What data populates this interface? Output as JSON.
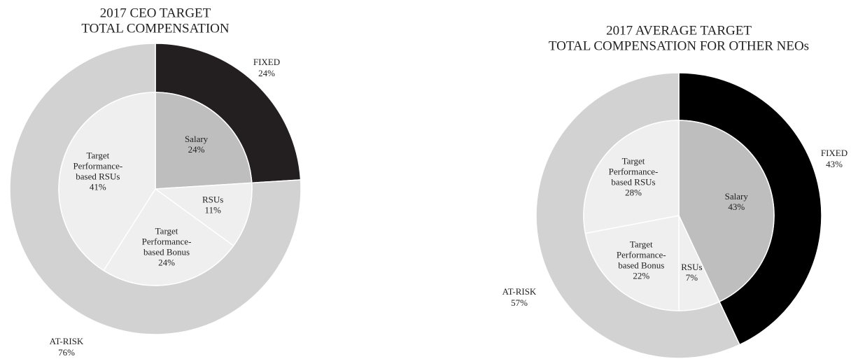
{
  "chart_data": [
    {
      "type": "pie",
      "title": [
        "2017 CEO TARGET",
        "TOTAL COMPENSATION"
      ],
      "outer": {
        "labels": [
          "FIXED",
          "AT-RISK"
        ],
        "values": [
          24,
          76
        ],
        "value_labels": [
          "24%",
          "76%"
        ],
        "colors": [
          "#231f20",
          "#d2d2d2"
        ]
      },
      "inner": {
        "labels": [
          [
            "Salary"
          ],
          [
            "RSUs"
          ],
          [
            "Target",
            "Performance-",
            "based Bonus"
          ],
          [
            "Target",
            "Performance-",
            "based RSUs"
          ]
        ],
        "values": [
          24,
          11,
          24,
          41
        ],
        "value_labels": [
          "24%",
          "11%",
          "24%",
          "41%"
        ],
        "colors": [
          "#bebebe",
          "#efefef",
          "#efefef",
          "#efefef"
        ]
      }
    },
    {
      "type": "pie",
      "title": [
        "2017 AVERAGE TARGET",
        "TOTAL COMPENSATION FOR OTHER NEOs"
      ],
      "outer": {
        "labels": [
          "FIXED",
          "AT-RISK"
        ],
        "values": [
          43,
          57
        ],
        "value_labels": [
          "43%",
          "57%"
        ],
        "colors": [
          "#000000",
          "#d2d2d2"
        ]
      },
      "inner": {
        "labels": [
          [
            "Salary"
          ],
          [
            "RSUs"
          ],
          [
            "Target",
            "Performance-",
            "based Bonus"
          ],
          [
            "Target",
            "Performance-",
            "based RSUs"
          ]
        ],
        "values": [
          43,
          7,
          22,
          28
        ],
        "value_labels": [
          "43%",
          "7%",
          "22%",
          "28%"
        ],
        "colors": [
          "#bebebe",
          "#efefef",
          "#efefef",
          "#efefef"
        ]
      }
    }
  ]
}
